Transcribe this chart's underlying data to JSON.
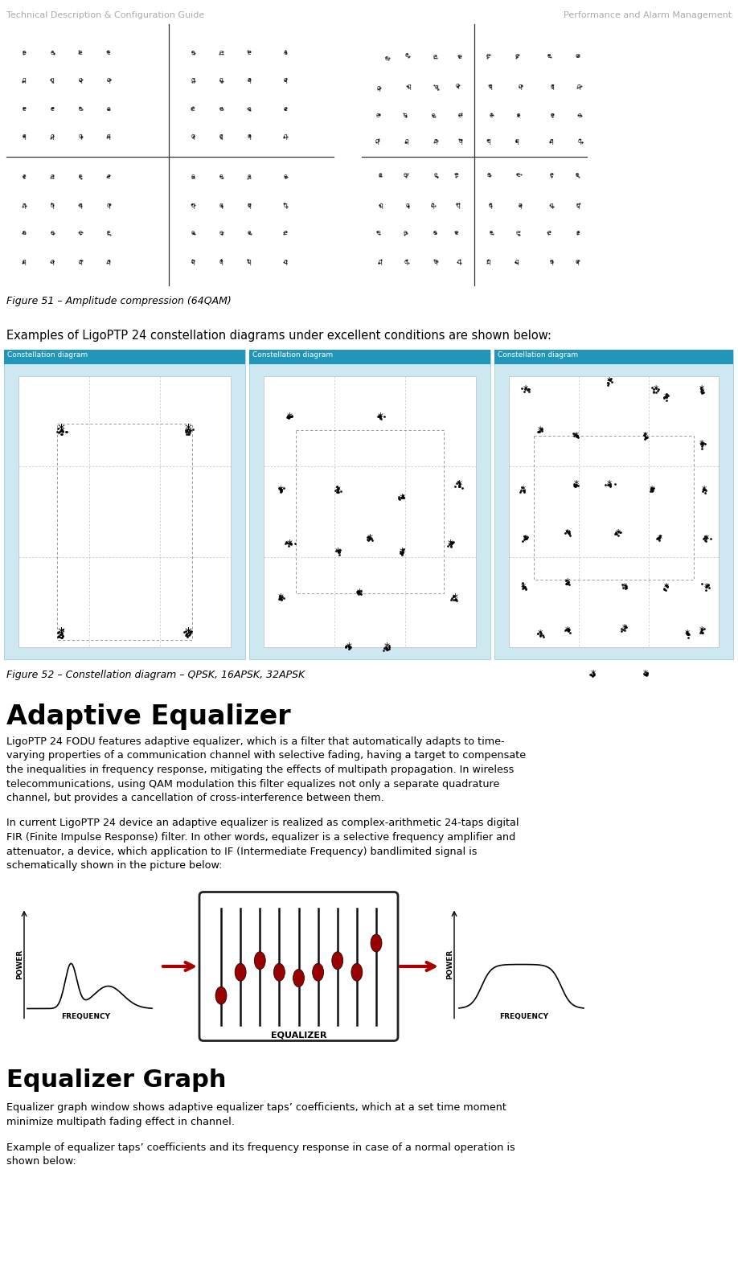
{
  "header_left": "Technical Description & Configuration Guide",
  "header_right": "Performance and Alarm Management",
  "bg_color": "#ffffff",
  "fig51_caption": "Figure 51 – Amplitude compression (64QAM)",
  "fig52_intro": "Examples of LigoPTP 24 constellation diagrams under excellent conditions are shown below:",
  "fig52_caption": "Figure 52 – Constellation diagram – QPSK, 16APSK, 32APSK",
  "section_title": "Adaptive Equalizer",
  "para1_lines": [
    "LigoPTP 24 FODU features adaptive equalizer, which is a filter that automatically adapts to time-",
    "varying properties of a communication channel with selective fading, having a target to compensate",
    "the inequalities in frequency response, mitigating the effects of multipath propagation. In wireless",
    "telecommunications, using QAM modulation this filter equalizes not only a separate quadrature",
    "channel, but provides a cancellation of cross-interference between them."
  ],
  "para2_lines": [
    "In current LigoPTP 24 device an adaptive equalizer is realized as complex-arithmetic 24-taps digital",
    "FIR (Finite Impulse Response) filter. In other words, equalizer is a selective frequency amplifier and",
    "attenuator, a device, which application to IF (Intermediate Frequency) bandlimited signal is",
    "schematically shown in the picture below:"
  ],
  "section2_title": "Equalizer Graph",
  "para3_lines": [
    "Equalizer graph window shows adaptive equalizer taps’ coefficients, which at a set time moment",
    "minimize multipath fading effect in channel."
  ],
  "para4_lines": [
    "Example of equalizer taps’ coefficients and its frequency response in case of a normal operation is",
    "shown below:"
  ],
  "constellation_title_color": "#2196b9",
  "constellation_bg": "#cee8f2",
  "inner_bg": "#ffffff",
  "diagram_title": "Constellation diagram",
  "header_color": "#aaaaaa",
  "text_color": "#000000",
  "caption_color": "#000000",
  "arrow_color": "#aa0000",
  "eq_border_color": "#222222",
  "eq_dot_color": "#990000",
  "eq_bar_color": "#111111"
}
